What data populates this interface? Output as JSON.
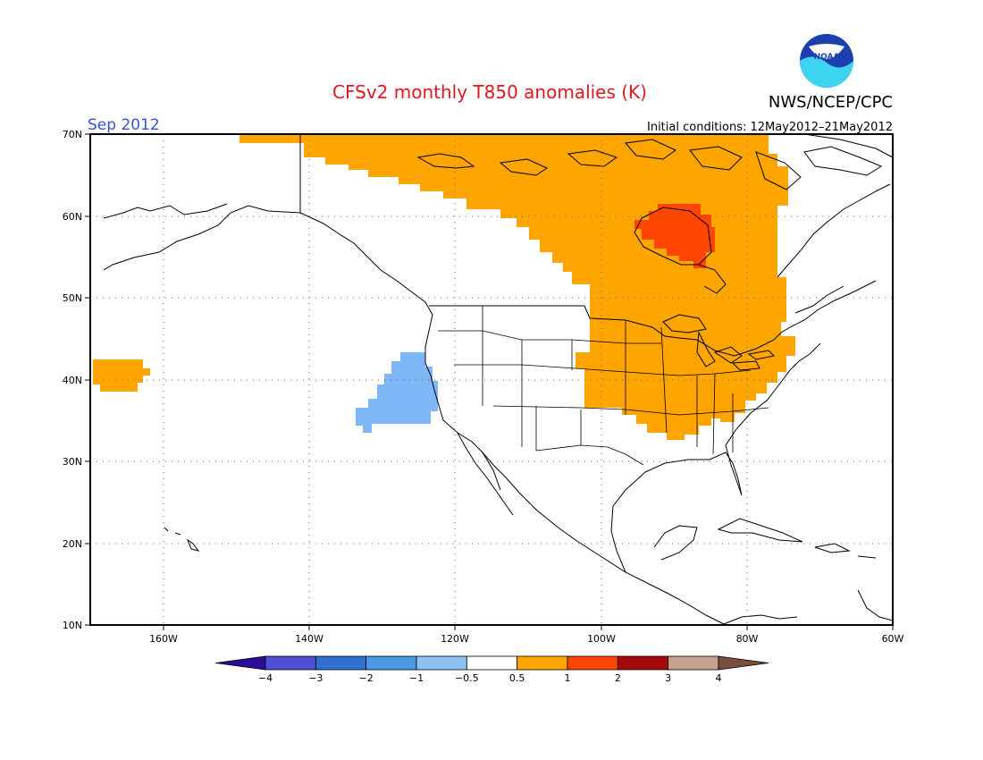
{
  "title": "CFSv2 monthly T850 anomalies (K)",
  "valid_month": "Sep 2012",
  "init_conditions": "Initial conditions: 12May2012–21May2012",
  "agency": "NWS/NCEP/CPC",
  "logo_text": "NOAA",
  "lat_labels": [
    "70N",
    "60N",
    "50N",
    "40N",
    "30N",
    "20N",
    "10N"
  ],
  "lon_labels": [
    "160W",
    "140W",
    "120W",
    "100W",
    "80W",
    "60W"
  ],
  "colorbar": {
    "labels": [
      "−4",
      "−3",
      "−2",
      "−1",
      "−0.5",
      "0.5",
      "1",
      "2",
      "3",
      "4"
    ],
    "colors": [
      "#2a0c96",
      "#4f4fd6",
      "#2f6fd0",
      "#4c9ae6",
      "#8cc2f5",
      "#ffffff",
      "#ffa500",
      "#ff4500",
      "#a50a0a",
      "#c8a090",
      "#7a4e3e"
    ]
  },
  "colors": {
    "title": "#e4161f",
    "month": "#3a4fd8",
    "positive_anomaly": "#ffa500",
    "strong_positive_anomaly": "#ff4500",
    "negative_anomaly": "#7eb8f7"
  }
}
